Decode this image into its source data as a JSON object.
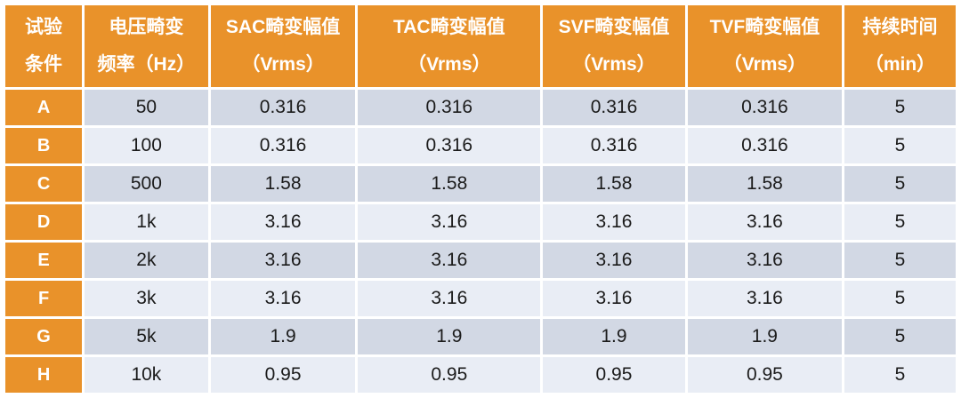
{
  "table": {
    "columns": [
      {
        "line1": "试验",
        "line2": "条件"
      },
      {
        "line1": "电压畸变",
        "line2": "频率（Hz）"
      },
      {
        "line1": "SAC畸变幅值",
        "line2": "（Vrms）"
      },
      {
        "line1": "TAC畸变幅值",
        "line2": "（Vrms）"
      },
      {
        "line1": "SVF畸变幅值",
        "line2": "（Vrms）"
      },
      {
        "line1": "TVF畸变幅值",
        "line2": "（Vrms）"
      },
      {
        "line1": "持续时间",
        "line2": "（min）"
      }
    ],
    "rows": [
      {
        "label": "A",
        "cells": [
          "50",
          "0.316",
          "0.316",
          "0.316",
          "0.316",
          "5"
        ]
      },
      {
        "label": "B",
        "cells": [
          "100",
          "0.316",
          "0.316",
          "0.316",
          "0.316",
          "5"
        ]
      },
      {
        "label": "C",
        "cells": [
          "500",
          "1.58",
          "1.58",
          "1.58",
          "1.58",
          "5"
        ]
      },
      {
        "label": "D",
        "cells": [
          "1k",
          "3.16",
          "3.16",
          "3.16",
          "3.16",
          "5"
        ]
      },
      {
        "label": "E",
        "cells": [
          "2k",
          "3.16",
          "3.16",
          "3.16",
          "3.16",
          "5"
        ]
      },
      {
        "label": "F",
        "cells": [
          "3k",
          "3.16",
          "3.16",
          "3.16",
          "3.16",
          "5"
        ]
      },
      {
        "label": "G",
        "cells": [
          "5k",
          "1.9",
          "1.9",
          "1.9",
          "1.9",
          "5"
        ]
      },
      {
        "label": "H",
        "cells": [
          "10k",
          "0.95",
          "0.95",
          "0.95",
          "0.95",
          "5"
        ]
      }
    ]
  },
  "colors": {
    "accent_orange": "#E9922A",
    "row_dark": "#D2D8E4",
    "row_light": "#E9EDF5",
    "header_text": "#FFFFFF",
    "data_text": "#1B1B1B"
  }
}
